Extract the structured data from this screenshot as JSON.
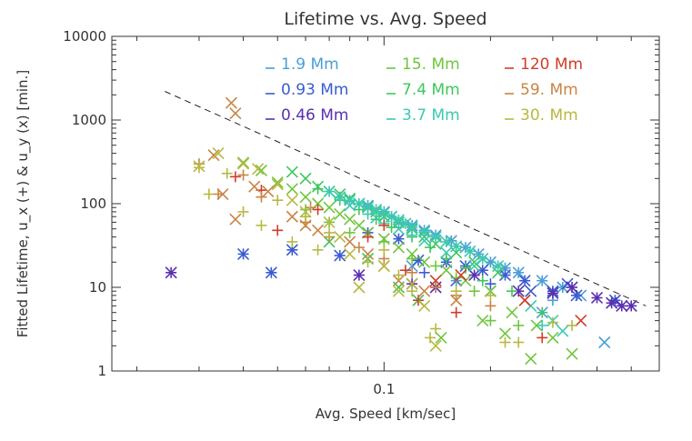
{
  "chart_data": {
    "type": "scatter",
    "title": "Lifetime vs. Avg. Speed",
    "xlabel": "Avg. Speed [km/sec]",
    "ylabel": "Fitted Lifetime, u_x (+) & u_y (x) [min.]",
    "x_scale": "log",
    "y_scale": "log",
    "xlim": [
      0.017,
      0.6
    ],
    "ylim": [
      1,
      10000
    ],
    "x_ticks": [
      {
        "value": 0.1,
        "label": "0.1"
      }
    ],
    "y_ticks": [
      {
        "value": 1,
        "label": "1"
      },
      {
        "value": 10,
        "label": "10"
      },
      {
        "value": 100,
        "label": "100"
      },
      {
        "value": 1000,
        "label": "1000"
      },
      {
        "value": 10000,
        "label": "10000"
      }
    ],
    "reference_line": {
      "style": "dashed",
      "color": "#222222",
      "points": [
        [
          0.024,
          2200
        ],
        [
          0.55,
          6
        ]
      ]
    },
    "legend_placement": "top",
    "marker_legend": [
      "+ = u_x",
      "x = u_y"
    ],
    "series": [
      {
        "name": "1.9 Mm",
        "color": "#4a9fd6",
        "points": [
          [
            0.09,
            "*",
            95
          ],
          [
            0.1,
            "*",
            80
          ],
          [
            0.105,
            "*",
            70
          ],
          [
            0.11,
            "*",
            60
          ],
          [
            0.12,
            "*",
            55
          ],
          [
            0.13,
            "*",
            48
          ],
          [
            0.14,
            "*",
            42
          ],
          [
            0.155,
            "*",
            36
          ],
          [
            0.17,
            "*",
            30
          ],
          [
            0.185,
            "*",
            25
          ],
          [
            0.2,
            "*",
            20
          ],
          [
            0.22,
            "*",
            17
          ],
          [
            0.24,
            "*",
            15
          ],
          [
            0.28,
            "*",
            12
          ],
          [
            0.32,
            "*",
            10
          ],
          [
            0.12,
            "x",
            18
          ],
          [
            0.16,
            "+",
            12
          ],
          [
            0.2,
            "x",
            9
          ],
          [
            0.36,
            "x",
            8
          ],
          [
            0.42,
            "x",
            2.2
          ],
          [
            0.3,
            "+",
            7
          ],
          [
            0.28,
            "x",
            5
          ]
        ]
      },
      {
        "name": "0.93 Mm",
        "color": "#3a5bd0",
        "points": [
          [
            0.04,
            "*",
            25
          ],
          [
            0.048,
            "*",
            15
          ],
          [
            0.055,
            "*",
            28
          ],
          [
            0.075,
            "*",
            24
          ],
          [
            0.09,
            "*",
            45
          ],
          [
            0.11,
            "*",
            38
          ],
          [
            0.125,
            "*",
            21
          ],
          [
            0.15,
            "*",
            20
          ],
          [
            0.17,
            "*",
            18
          ],
          [
            0.19,
            "*",
            16
          ],
          [
            0.22,
            "*",
            14
          ],
          [
            0.25,
            "*",
            12
          ],
          [
            0.3,
            "*",
            9
          ],
          [
            0.35,
            "*",
            8
          ],
          [
            0.45,
            "*",
            7
          ],
          [
            0.16,
            "x",
            12
          ],
          [
            0.2,
            "+",
            11
          ],
          [
            0.13,
            "+",
            15
          ],
          [
            0.26,
            "x",
            9
          ],
          [
            0.33,
            "x",
            11
          ]
        ]
      },
      {
        "name": "0.46 Mm",
        "color": "#5a2fb0",
        "points": [
          [
            0.025,
            "*",
            15
          ],
          [
            0.085,
            "*",
            14
          ],
          [
            0.14,
            "*",
            10
          ],
          [
            0.24,
            "*",
            9
          ],
          [
            0.3,
            "*",
            8.5
          ],
          [
            0.34,
            "*",
            10
          ],
          [
            0.4,
            "*",
            7.5
          ],
          [
            0.44,
            "*",
            6.5
          ],
          [
            0.47,
            "*",
            6
          ],
          [
            0.5,
            "*",
            6
          ],
          [
            0.18,
            "*",
            14
          ],
          [
            0.12,
            "*",
            11
          ]
        ]
      },
      {
        "name": "15. Mm",
        "color": "#6ec63c",
        "points": [
          [
            0.04,
            "x",
            310
          ],
          [
            0.045,
            "x",
            250
          ],
          [
            0.05,
            "x",
            180
          ],
          [
            0.055,
            "x",
            150
          ],
          [
            0.06,
            "x",
            120
          ],
          [
            0.065,
            "x",
            100
          ],
          [
            0.07,
            "x",
            90
          ],
          [
            0.075,
            "x",
            75
          ],
          [
            0.08,
            "x",
            65
          ],
          [
            0.085,
            "x",
            55
          ],
          [
            0.09,
            "x",
            45
          ],
          [
            0.1,
            "x",
            38
          ],
          [
            0.11,
            "x",
            30
          ],
          [
            0.12,
            "x",
            25
          ],
          [
            0.13,
            "x",
            20
          ],
          [
            0.15,
            "x",
            16
          ],
          [
            0.17,
            "x",
            12
          ],
          [
            0.2,
            "x",
            9
          ],
          [
            0.23,
            "x",
            5
          ],
          [
            0.27,
            "x",
            3.5
          ],
          [
            0.3,
            "x",
            2.5
          ],
          [
            0.06,
            "+",
            85
          ],
          [
            0.07,
            "+",
            60
          ],
          [
            0.08,
            "+",
            45
          ],
          [
            0.1,
            "+",
            35
          ],
          [
            0.12,
            "+",
            22
          ],
          [
            0.14,
            "+",
            18
          ],
          [
            0.16,
            "+",
            13
          ],
          [
            0.18,
            "+",
            9
          ],
          [
            0.2,
            "+",
            4
          ],
          [
            0.24,
            "+",
            3.5
          ],
          [
            0.22,
            "x",
            2.8
          ],
          [
            0.26,
            "x",
            1.4
          ],
          [
            0.34,
            "x",
            1.6
          ],
          [
            0.145,
            "x",
            2.5
          ],
          [
            0.19,
            "x",
            4
          ]
        ]
      },
      {
        "name": "7.4 Mm",
        "color": "#3cc85a",
        "points": [
          [
            0.055,
            "x",
            240
          ],
          [
            0.06,
            "x",
            200
          ],
          [
            0.065,
            "x",
            160
          ],
          [
            0.07,
            "x",
            140
          ],
          [
            0.075,
            "x",
            130
          ],
          [
            0.08,
            "x",
            115
          ],
          [
            0.085,
            "x",
            100
          ],
          [
            0.09,
            "x",
            90
          ],
          [
            0.095,
            "x",
            80
          ],
          [
            0.1,
            "x",
            70
          ],
          [
            0.11,
            "x",
            60
          ],
          [
            0.12,
            "x",
            50
          ],
          [
            0.13,
            "x",
            40
          ],
          [
            0.14,
            "x",
            33
          ],
          [
            0.16,
            "x",
            26
          ],
          [
            0.18,
            "x",
            20
          ],
          [
            0.21,
            "x",
            15
          ],
          [
            0.065,
            "+",
            150
          ],
          [
            0.075,
            "+",
            110
          ],
          [
            0.085,
            "+",
            85
          ],
          [
            0.095,
            "+",
            65
          ],
          [
            0.105,
            "+",
            52
          ],
          [
            0.12,
            "+",
            40
          ],
          [
            0.135,
            "+",
            30
          ],
          [
            0.15,
            "+",
            22
          ],
          [
            0.17,
            "+",
            17
          ],
          [
            0.19,
            "+",
            12
          ],
          [
            0.23,
            "+",
            9
          ],
          [
            0.28,
            "+",
            5
          ],
          [
            0.11,
            "x",
            10
          ],
          [
            0.125,
            "x",
            7
          ],
          [
            0.07,
            "x",
            35
          ],
          [
            0.09,
            "x",
            22
          ]
        ]
      },
      {
        "name": "3.7 Mm",
        "color": "#3cc8b0",
        "points": [
          [
            0.07,
            "*",
            140
          ],
          [
            0.075,
            "*",
            120
          ],
          [
            0.08,
            "*",
            110
          ],
          [
            0.085,
            "*",
            100
          ],
          [
            0.09,
            "*",
            92
          ],
          [
            0.095,
            "*",
            85
          ],
          [
            0.1,
            "*",
            78
          ],
          [
            0.105,
            "*",
            70
          ],
          [
            0.11,
            "*",
            64
          ],
          [
            0.115,
            "*",
            58
          ],
          [
            0.12,
            "*",
            52
          ],
          [
            0.13,
            "*",
            46
          ],
          [
            0.14,
            "*",
            40
          ],
          [
            0.15,
            "*",
            35
          ],
          [
            0.16,
            "*",
            31
          ],
          [
            0.175,
            "*",
            27
          ],
          [
            0.19,
            "*",
            22
          ],
          [
            0.21,
            "*",
            18
          ],
          [
            0.08,
            "x",
            95
          ],
          [
            0.095,
            "x",
            68
          ],
          [
            0.11,
            "x",
            50
          ],
          [
            0.13,
            "x",
            36
          ],
          [
            0.15,
            "x",
            26
          ],
          [
            0.18,
            "x",
            18
          ],
          [
            0.26,
            "x",
            6
          ],
          [
            0.3,
            "x",
            4
          ],
          [
            0.32,
            "x",
            3
          ],
          [
            0.28,
            "+",
            3.5
          ],
          [
            0.09,
            "+",
            75
          ],
          [
            0.1,
            "+",
            58
          ],
          [
            0.12,
            "+",
            42
          ]
        ]
      },
      {
        "name": "120 Mm",
        "color": "#d23c28",
        "points": [
          [
            0.038,
            "+",
            210
          ],
          [
            0.045,
            "+",
            145
          ],
          [
            0.05,
            "+",
            48
          ],
          [
            0.065,
            "+",
            85
          ],
          [
            0.09,
            "+",
            40
          ],
          [
            0.1,
            "+",
            55
          ],
          [
            0.115,
            "+",
            16
          ],
          [
            0.125,
            "+",
            7
          ],
          [
            0.16,
            "+",
            5
          ],
          [
            0.28,
            "+",
            2.5
          ],
          [
            0.14,
            "x",
            12
          ],
          [
            0.165,
            "x",
            14
          ],
          [
            0.25,
            "x",
            7
          ],
          [
            0.36,
            "x",
            4
          ]
        ]
      },
      {
        "name": "59. Mm",
        "color": "#c88446",
        "points": [
          [
            0.037,
            "x",
            1600
          ],
          [
            0.038,
            "x",
            1200
          ],
          [
            0.033,
            "x",
            380
          ],
          [
            0.035,
            "x",
            130
          ],
          [
            0.038,
            "x",
            65
          ],
          [
            0.043,
            "x",
            160
          ],
          [
            0.047,
            "x",
            140
          ],
          [
            0.055,
            "x",
            70
          ],
          [
            0.06,
            "x",
            55
          ],
          [
            0.065,
            "x",
            48
          ],
          [
            0.08,
            "x",
            35
          ],
          [
            0.09,
            "x",
            25
          ],
          [
            0.1,
            "x",
            18
          ],
          [
            0.11,
            "x",
            12
          ],
          [
            0.13,
            "x",
            9
          ],
          [
            0.16,
            "x",
            7
          ],
          [
            0.03,
            "+",
            300
          ],
          [
            0.034,
            "+",
            130
          ],
          [
            0.04,
            "+",
            220
          ],
          [
            0.045,
            "+",
            120
          ],
          [
            0.06,
            "+",
            60
          ],
          [
            0.062,
            "+",
            90
          ],
          [
            0.07,
            "+",
            40
          ],
          [
            0.085,
            "+",
            30
          ],
          [
            0.1,
            "+",
            22
          ],
          [
            0.12,
            "+",
            15
          ],
          [
            0.14,
            "+",
            10
          ],
          [
            0.16,
            "+",
            8
          ],
          [
            0.2,
            "+",
            6
          ]
        ]
      },
      {
        "name": "30. Mm",
        "color": "#b8b840",
        "points": [
          [
            0.03,
            "x",
            280
          ],
          [
            0.034,
            "x",
            400
          ],
          [
            0.04,
            "x",
            300
          ],
          [
            0.044,
            "x",
            260
          ],
          [
            0.05,
            "x",
            170
          ],
          [
            0.055,
            "x",
            110
          ],
          [
            0.06,
            "x",
            80
          ],
          [
            0.07,
            "x",
            60
          ],
          [
            0.075,
            "x",
            40
          ],
          [
            0.08,
            "x",
            25
          ],
          [
            0.085,
            "x",
            10
          ],
          [
            0.1,
            "x",
            18
          ],
          [
            0.12,
            "x",
            11
          ],
          [
            0.13,
            "x",
            6
          ],
          [
            0.14,
            "x",
            2
          ],
          [
            0.03,
            "+",
            270
          ],
          [
            0.032,
            "+",
            130
          ],
          [
            0.036,
            "+",
            230
          ],
          [
            0.04,
            "+",
            80
          ],
          [
            0.045,
            "+",
            55
          ],
          [
            0.05,
            "+",
            110
          ],
          [
            0.055,
            "+",
            35
          ],
          [
            0.06,
            "+",
            70
          ],
          [
            0.065,
            "+",
            28
          ],
          [
            0.07,
            "+",
            45
          ],
          [
            0.09,
            "+",
            20
          ],
          [
            0.11,
            "+",
            14
          ],
          [
            0.12,
            "+",
            9
          ],
          [
            0.135,
            "+",
            2.5
          ],
          [
            0.14,
            "+",
            3.2
          ],
          [
            0.16,
            "+",
            9
          ],
          [
            0.2,
            "+",
            8
          ],
          [
            0.22,
            "+",
            2.2
          ],
          [
            0.24,
            "+",
            2.2
          ],
          [
            0.3,
            "+",
            3.8
          ],
          [
            0.34,
            "+",
            3.5
          ],
          [
            0.1,
            "+",
            28
          ],
          [
            0.11,
            "x",
            9
          ]
        ]
      }
    ]
  }
}
